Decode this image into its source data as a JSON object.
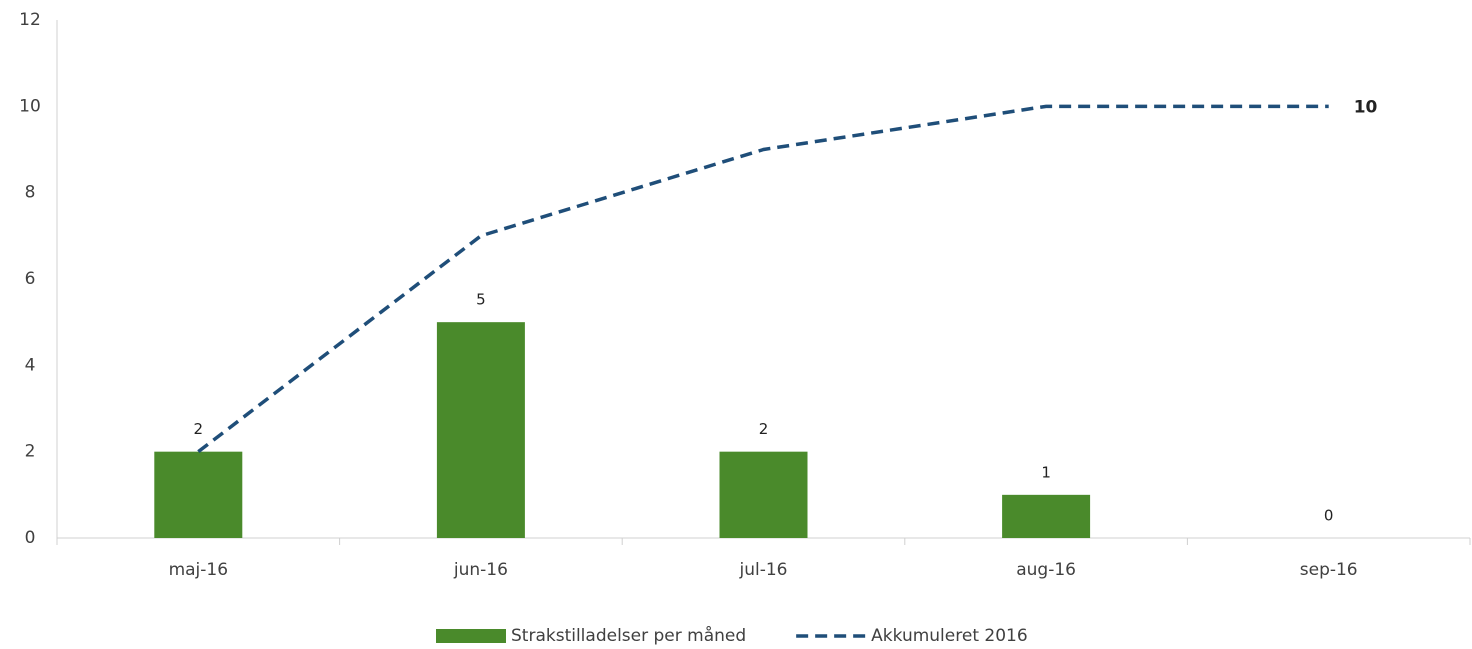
{
  "chart_data": {
    "type": "combo",
    "categories": [
      "maj-16",
      "jun-16",
      "jul-16",
      "aug-16",
      "sep-16"
    ],
    "series": [
      {
        "name": "Strakstilladelser per måned",
        "type": "bar",
        "color": "#4a8a2b",
        "values": [
          2,
          5,
          2,
          1,
          0
        ],
        "data_labels": "all"
      },
      {
        "name": "Akkumuleret 2016",
        "type": "line",
        "color": "#1f4e79",
        "dashed": true,
        "values": [
          2,
          7,
          9,
          10,
          10
        ],
        "data_labels": "last"
      }
    ],
    "ylim": [
      0,
      12
    ],
    "yticks": [
      0,
      2,
      4,
      6,
      8,
      10,
      12
    ],
    "grid": false,
    "legend": "bottom"
  }
}
